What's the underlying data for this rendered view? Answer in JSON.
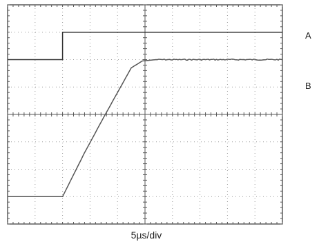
{
  "chart_data": {
    "type": "line",
    "title": "",
    "xlabel": "5µs/div",
    "ylabel": "",
    "grid": true,
    "x_divisions": 10,
    "y_divisions": 8,
    "x_units": "div",
    "y_units": "div",
    "xlim": [
      0,
      10
    ],
    "ylim": [
      0,
      8
    ],
    "series": [
      {
        "name": "A",
        "color": "#333333",
        "x": [
          0,
          2.0,
          2.0,
          10
        ],
        "y": [
          6.0,
          6.0,
          7.0,
          7.0
        ]
      },
      {
        "name": "B",
        "color": "#555555",
        "noise": true,
        "x": [
          0,
          2.0,
          2.8,
          3.5,
          4.5,
          4.9,
          5.4,
          10
        ],
        "y": [
          1.0,
          1.0,
          2.6,
          3.9,
          5.7,
          5.95,
          6.0,
          6.0
        ]
      }
    ]
  }
}
